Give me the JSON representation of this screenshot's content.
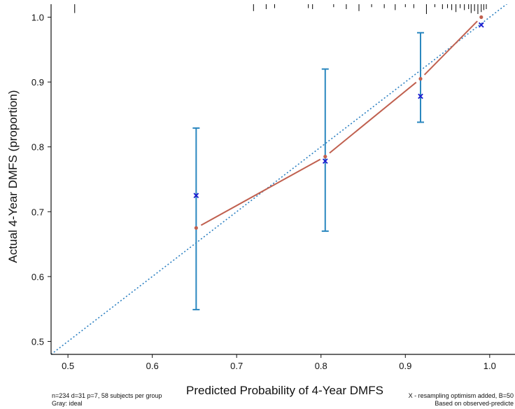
{
  "chart_data": {
    "type": "scatter",
    "xlabel": "Predicted Probability of 4-Year DMFS",
    "ylabel": "Actual 4-Year DMFS (proportion)",
    "xlim": [
      0.48,
      1.03
    ],
    "ylim": [
      0.48,
      1.02
    ],
    "xticks": [
      {
        "value": 0.5,
        "label": "0.5"
      },
      {
        "value": 0.6,
        "label": "0.6"
      },
      {
        "value": 0.7,
        "label": "0.7"
      },
      {
        "value": 0.8,
        "label": "0.8"
      },
      {
        "value": 0.9,
        "label": "0.9"
      },
      {
        "value": 1.0,
        "label": "1.0"
      }
    ],
    "yticks": [
      {
        "value": 0.5,
        "label": "0.5"
      },
      {
        "value": 0.6,
        "label": "0.6"
      },
      {
        "value": 0.7,
        "label": "0.7"
      },
      {
        "value": 0.8,
        "label": "0.8"
      },
      {
        "value": 0.9,
        "label": "0.9"
      },
      {
        "value": 1.0,
        "label": "1.0"
      }
    ],
    "grid": false,
    "ideal_line": {
      "from": [
        0.48,
        0.48
      ],
      "to": [
        1.03,
        1.03
      ],
      "color": "#2a7fc1",
      "style": "dotted"
    },
    "series": [
      {
        "kind": "observed",
        "color": "#c0604f",
        "x": [
          0.652,
          0.805,
          0.918,
          0.99
        ],
        "y": [
          0.675,
          0.785,
          0.905,
          1.0
        ]
      },
      {
        "kind": "optimism-corrected",
        "color": "#1a1ad0",
        "marker": "x",
        "x": [
          0.652,
          0.805,
          0.918,
          0.99
        ],
        "y": [
          0.725,
          0.778,
          0.878,
          0.988
        ]
      }
    ],
    "error_bars": {
      "color": "#2a87bf",
      "x": [
        0.652,
        0.805,
        0.918
      ],
      "lower": [
        0.549,
        0.67,
        0.838
      ],
      "upper": [
        0.829,
        0.92,
        0.976
      ]
    },
    "rug": {
      "color": "#000000",
      "x": [
        0.508,
        0.72,
        0.735,
        0.745,
        0.785,
        0.79,
        0.815,
        0.83,
        0.845,
        0.86,
        0.875,
        0.888,
        0.9,
        0.91,
        0.925,
        0.935,
        0.944,
        0.95,
        0.955,
        0.96,
        0.965,
        0.97,
        0.975,
        0.978,
        0.982,
        0.986,
        0.99,
        0.993,
        0.996
      ],
      "len": [
        0.9,
        0.7,
        0.5,
        0.4,
        0.4,
        0.5,
        0.3,
        0.5,
        0.7,
        0.3,
        0.4,
        0.6,
        0.3,
        0.4,
        1.0,
        0.3,
        0.5,
        0.4,
        0.6,
        0.8,
        0.4,
        0.6,
        0.5,
        0.9,
        0.7,
        1.0,
        0.8,
        0.6,
        0.5
      ]
    },
    "notes": {
      "bottom_left_1": "n=234 d=31 p=7, 58 subjects per group",
      "bottom_left_2": "Gray: ideal",
      "bottom_right_1": "X - resampling optimism added, B=50",
      "bottom_right_2": "Based on observed-predicte"
    }
  }
}
